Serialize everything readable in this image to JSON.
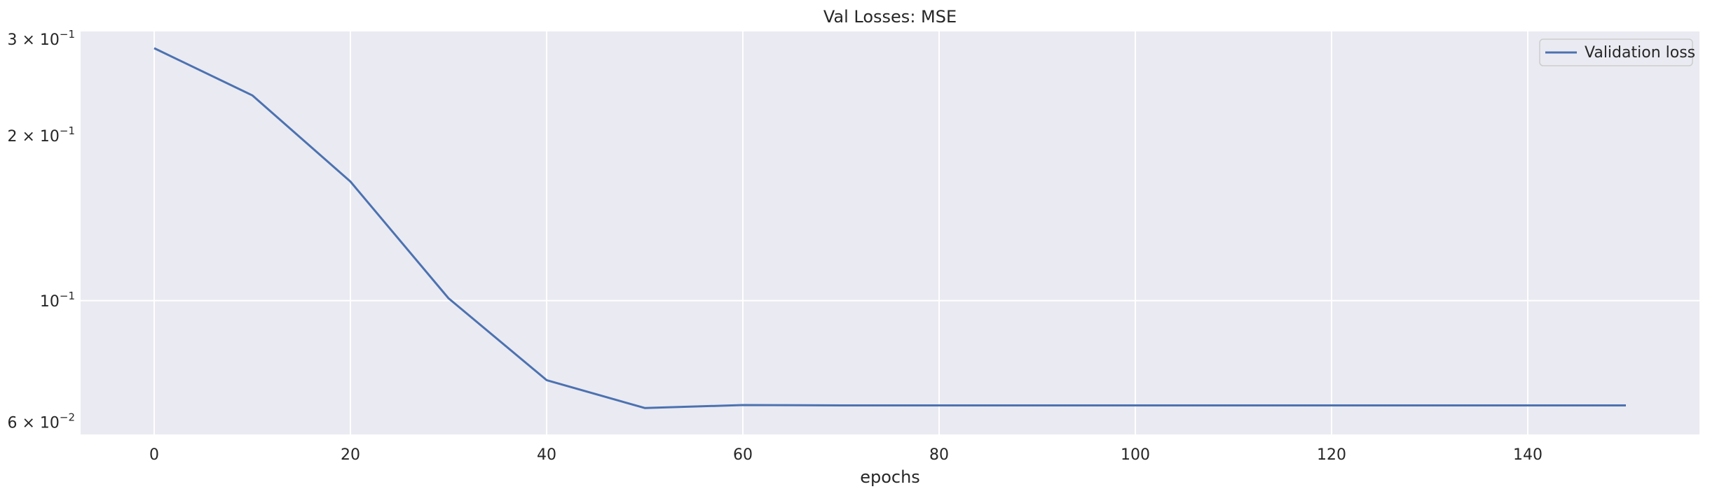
{
  "chart_data": {
    "type": "line",
    "title": "Val Losses:  MSE",
    "xlabel": "epochs",
    "ylabel": "",
    "yscale": "log",
    "xlim": [
      -7.5,
      157.5
    ],
    "ylim": [
      0.057,
      0.31
    ],
    "grid": true,
    "legend_position": "top-right",
    "x_ticks": [
      {
        "value": 0,
        "label": "0"
      },
      {
        "value": 20,
        "label": "20"
      },
      {
        "value": 40,
        "label": "40"
      },
      {
        "value": 60,
        "label": "60"
      },
      {
        "value": 80,
        "label": "80"
      },
      {
        "value": 100,
        "label": "100"
      },
      {
        "value": 120,
        "label": "120"
      },
      {
        "value": 140,
        "label": "140"
      }
    ],
    "y_ticks": [
      {
        "value": 0.3,
        "mantissa": "3 × 10",
        "exponent": "−1"
      },
      {
        "value": 0.2,
        "mantissa": "2 × 10",
        "exponent": "−1"
      },
      {
        "value": 0.1,
        "mantissa": "10",
        "exponent": "−1"
      },
      {
        "value": 0.06,
        "mantissa": "6 × 10",
        "exponent": "−2"
      }
    ],
    "series": [
      {
        "name": "Validation loss",
        "color": "#4c72b0",
        "x": [
          0,
          10,
          20,
          30,
          40,
          50,
          60,
          70,
          80,
          90,
          100,
          110,
          120,
          130,
          140,
          150
        ],
        "y": [
          0.289,
          0.237,
          0.165,
          0.101,
          0.0716,
          0.0637,
          0.0645,
          0.0644,
          0.0644,
          0.0644,
          0.0644,
          0.0644,
          0.0644,
          0.0644,
          0.0644,
          0.0644
        ]
      }
    ]
  },
  "colors": {
    "plot_background": "#eaeaf2",
    "grid": "#ffffff",
    "line": "#4c72b0"
  }
}
